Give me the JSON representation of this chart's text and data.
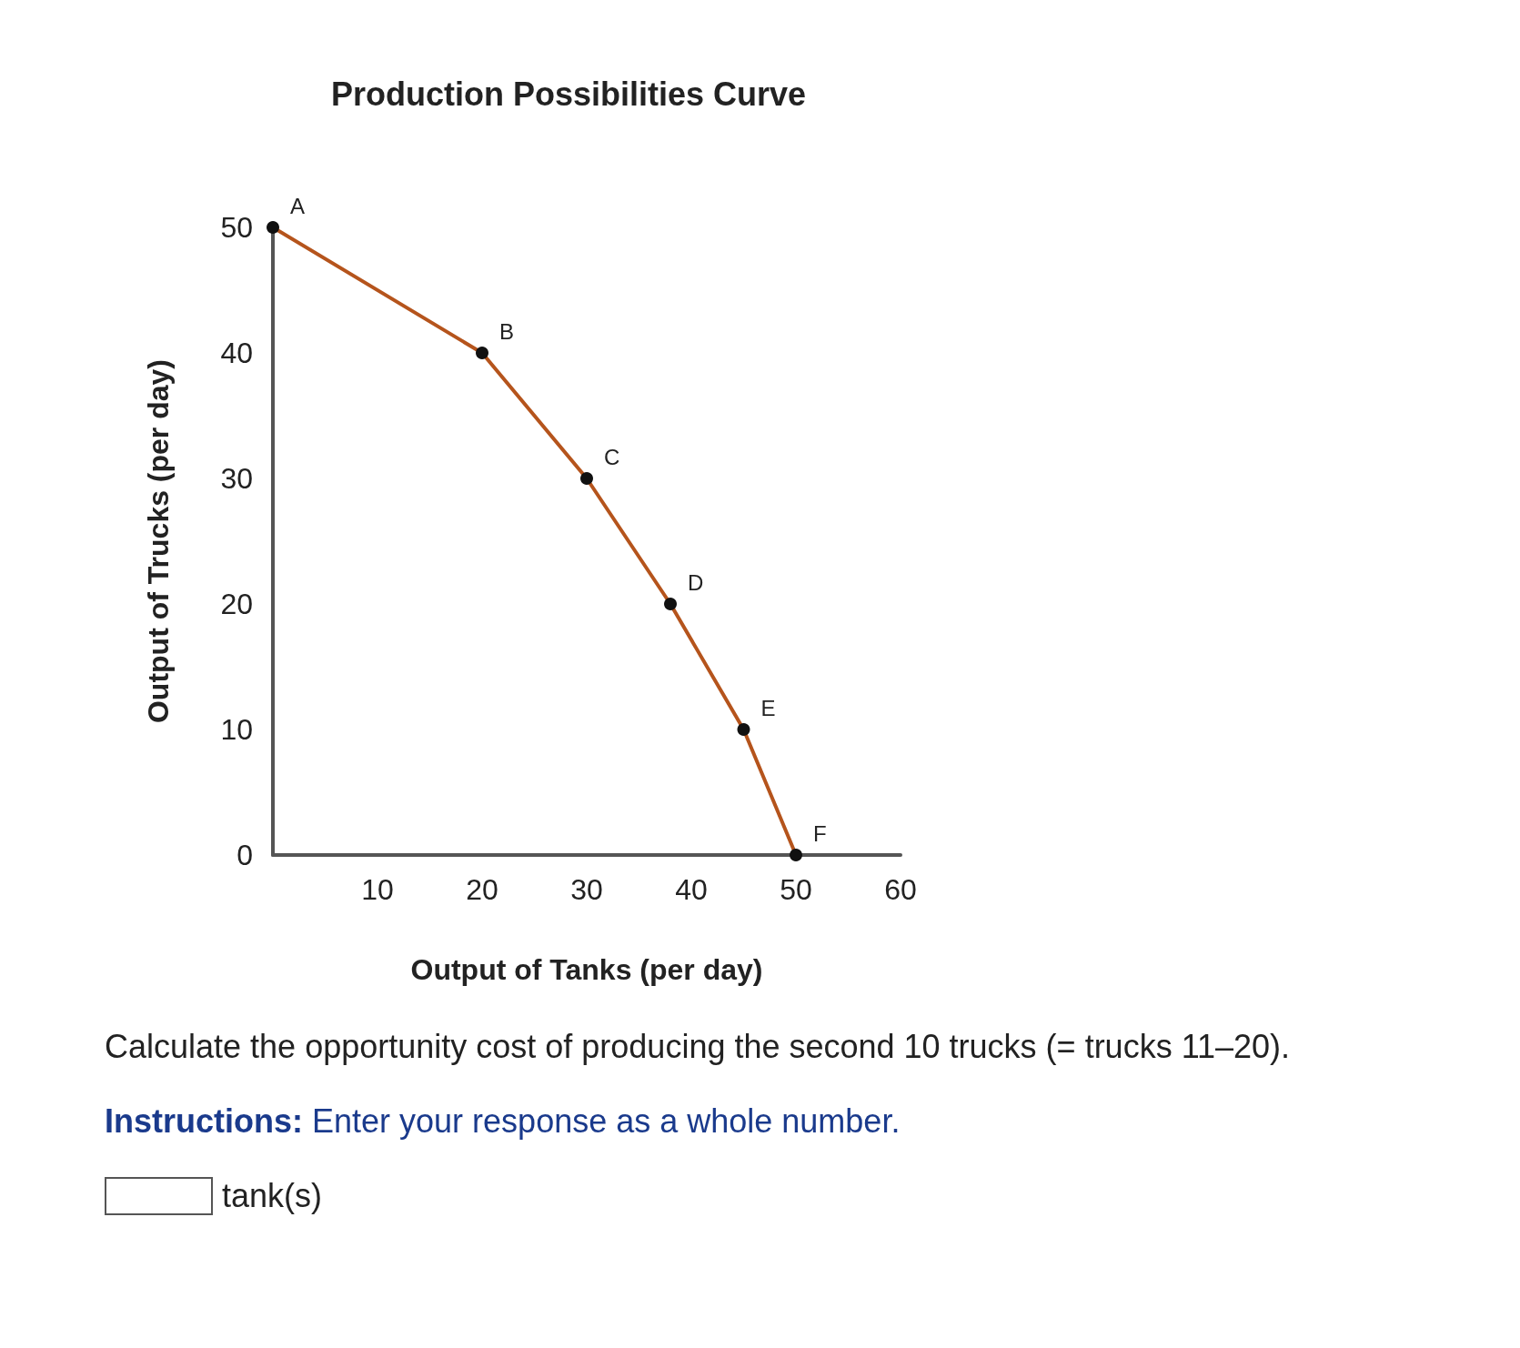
{
  "chart_data": {
    "type": "line",
    "title": "Production Possibilities Curve",
    "xlabel": "Output of Tanks (per day)",
    "ylabel": "Output of Trucks (per day)",
    "x": [
      0,
      20,
      30,
      38,
      45,
      50
    ],
    "series": [
      {
        "color": "#b5541c",
        "values": [
          50,
          40,
          30,
          20,
          10,
          0
        ]
      }
    ],
    "marker": "circle",
    "xlim": [
      0,
      60
    ],
    "xticks": [
      10,
      20,
      30,
      40,
      50,
      60
    ],
    "ylim": [
      0,
      50
    ],
    "yticks": [
      0,
      10,
      20,
      30,
      40,
      50
    ],
    "grid": false,
    "annotations": [
      {
        "text": "A",
        "x": 0,
        "y": 50
      },
      {
        "text": "B",
        "x": 20,
        "y": 40
      },
      {
        "text": "C",
        "x": 30,
        "y": 30
      },
      {
        "text": "D",
        "x": 38,
        "y": 20
      },
      {
        "text": "E",
        "x": 45,
        "y": 10
      },
      {
        "text": "F",
        "x": 50,
        "y": 0
      },
      "Calculate the opportunity cost of producing the second 10 trucks (= trucks 11–20).",
      "Instructions: Enter your response as a whole number.",
      "tank(s)"
    ]
  }
}
